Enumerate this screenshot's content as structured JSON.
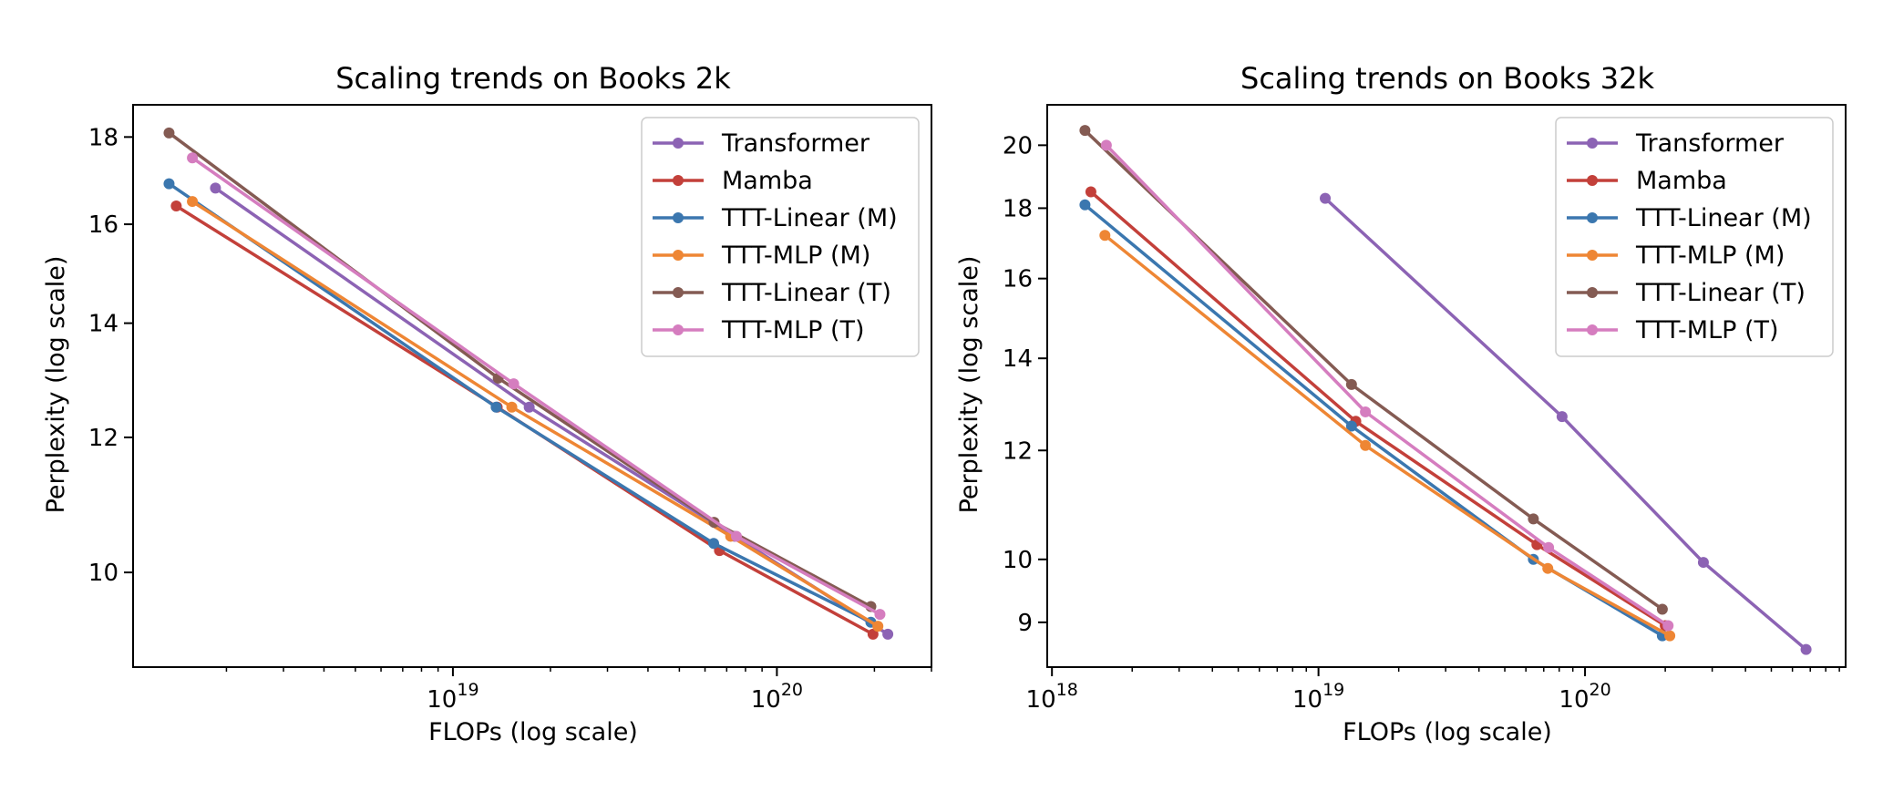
{
  "figure": {
    "charts": [
      {
        "title": "Scaling trends on Books 2k",
        "xlabel": "FLOPs (log scale)",
        "ylabel": "Perplexity (log scale)"
      },
      {
        "title": "Scaling trends on Books 32k",
        "xlabel": "FLOPs (log scale)",
        "ylabel": "Perplexity (log scale)"
      }
    ]
  },
  "chart_data": [
    {
      "type": "line",
      "title": "Scaling trends on Books 2k",
      "xlabel": "FLOPs (log scale)",
      "ylabel": "Perplexity (log scale)",
      "xscale": "log",
      "yscale": "log",
      "xlim": [
        1.03e+18,
        3e+20
      ],
      "ylim": [
        8.8,
        18.8
      ],
      "xticks": [
        {
          "value": 1e+19,
          "base": "10",
          "exp": "19"
        },
        {
          "value": 1e+20,
          "base": "10",
          "exp": "20"
        }
      ],
      "yticks": [
        10,
        12,
        14,
        16,
        18
      ],
      "grid": false,
      "legend_position": "top-right",
      "series": [
        {
          "name": "Transformer",
          "color": "#8c63b4",
          "x": [
            1.85e+18,
            1.72e+19,
            7.4e+19,
            2.2e+20
          ],
          "y": [
            16.8,
            12.5,
            10.5,
            9.2
          ]
        },
        {
          "name": "Mamba",
          "color": "#c3403a",
          "x": [
            1.4e+18,
            1.37e+19,
            6.65e+19,
            1.98e+20
          ],
          "y": [
            16.4,
            12.5,
            10.3,
            9.2
          ]
        },
        {
          "name": "TTT-Linear (M)",
          "color": "#3b77af",
          "x": [
            1.33e+18,
            1.36e+19,
            6.38e+19,
            1.95e+20
          ],
          "y": [
            16.9,
            12.5,
            10.4,
            9.35
          ]
        },
        {
          "name": "TTT-MLP (M)",
          "color": "#ee8634",
          "x": [
            1.57e+18,
            1.52e+19,
            7.2e+19,
            2.05e+20
          ],
          "y": [
            16.5,
            12.5,
            10.5,
            9.3
          ]
        },
        {
          "name": "TTT-Linear (T)",
          "color": "#845b53",
          "x": [
            1.33e+18,
            1.38e+19,
            6.4e+19,
            1.95e+20
          ],
          "y": [
            18.1,
            13.0,
            10.7,
            9.55
          ]
        },
        {
          "name": "TTT-MLP (T)",
          "color": "#d57dbf",
          "x": [
            1.57e+18,
            1.54e+19,
            7.5e+19,
            2.08e+20
          ],
          "y": [
            17.5,
            12.9,
            10.5,
            9.45
          ]
        }
      ]
    },
    {
      "type": "line",
      "title": "Scaling trends on Books 32k",
      "xlabel": "FLOPs (log scale)",
      "ylabel": "Perplexity (log scale)",
      "xscale": "log",
      "yscale": "log",
      "xlim": [
        9.6e+17,
        9.5e+20
      ],
      "ylim": [
        8.35,
        21.4
      ],
      "xticks": [
        {
          "value": 1e+18,
          "base": "10",
          "exp": "18"
        },
        {
          "value": 1e+19,
          "base": "10",
          "exp": "19"
        },
        {
          "value": 1e+20,
          "base": "10",
          "exp": "20"
        }
      ],
      "yticks": [
        9,
        10,
        12,
        14,
        16,
        18,
        20
      ],
      "grid": false,
      "legend_position": "top-right",
      "series": [
        {
          "name": "Transformer",
          "color": "#8c63b4",
          "x": [
            1.06e+19,
            8.2e+19,
            2.78e+20,
            6.75e+20
          ],
          "y": [
            18.3,
            12.7,
            9.95,
            8.6
          ]
        },
        {
          "name": "Mamba",
          "color": "#c3403a",
          "x": [
            1.4e+18,
            1.38e+19,
            6.6e+19,
            2e+20
          ],
          "y": [
            18.5,
            12.6,
            10.25,
            8.95
          ]
        },
        {
          "name": "TTT-Linear (M)",
          "color": "#3b77af",
          "x": [
            1.33e+18,
            1.33e+19,
            6.4e+19,
            1.95e+20
          ],
          "y": [
            18.1,
            12.5,
            10.0,
            8.8
          ]
        },
        {
          "name": "TTT-MLP (M)",
          "color": "#ee8634",
          "x": [
            1.58e+18,
            1.5e+19,
            7.25e+19,
            2.08e+20
          ],
          "y": [
            17.2,
            12.1,
            9.85,
            8.8
          ]
        },
        {
          "name": "TTT-Linear (T)",
          "color": "#845b53",
          "x": [
            1.33e+18,
            1.33e+19,
            6.4e+19,
            1.95e+20
          ],
          "y": [
            20.5,
            13.4,
            10.7,
            9.2
          ]
        },
        {
          "name": "TTT-MLP (T)",
          "color": "#d57dbf",
          "x": [
            1.6e+18,
            1.5e+19,
            7.3e+19,
            2.05e+20
          ],
          "y": [
            20.0,
            12.8,
            10.2,
            8.95
          ]
        }
      ]
    }
  ]
}
